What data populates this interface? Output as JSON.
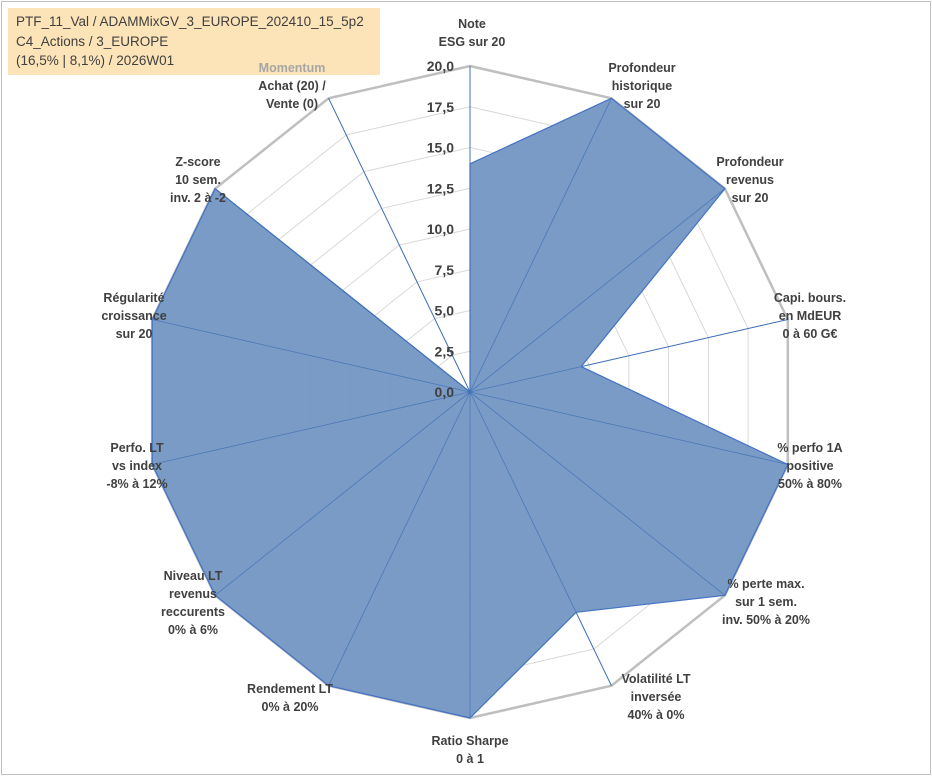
{
  "header": {
    "line1": "PTF_11_Val / ADAMMixGV_3_EUROPE_202410_15_5p2",
    "line2": "C4_Actions / 3_EUROPE",
    "line3": "(16,5% | 8,1%) / 2026W01"
  },
  "chart_data": {
    "type": "radar",
    "title": "",
    "rmin": 0,
    "rmax": 20,
    "ticks": [
      "0,0",
      "2,5",
      "5,0",
      "7,5",
      "10,0",
      "12,5",
      "15,0",
      "17,5",
      "20,0"
    ],
    "grid": true,
    "colors": {
      "fill": "#7396c3",
      "line": "#4472c4",
      "grid": "#d9d9d9",
      "outer": "#bfbfbf"
    },
    "axes": [
      {
        "lines": [
          "Note",
          "ESG sur 20"
        ],
        "value": 14
      },
      {
        "lines": [
          "Profondeur",
          "historique",
          "sur 20"
        ],
        "value": 20
      },
      {
        "lines": [
          "Profondeur",
          "revenus",
          "sur 20"
        ],
        "value": 20
      },
      {
        "lines": [
          "Capi. bours.",
          "en MdEUR",
          "0 à 60 G€"
        ],
        "value": 7
      },
      {
        "lines": [
          "% perfo 1A",
          "positive",
          "50% à 80%"
        ],
        "value": 20
      },
      {
        "lines": [
          "% perte max.",
          "sur 1 sem.",
          "inv. 50% à 20%"
        ],
        "value": 20
      },
      {
        "lines": [
          "Volatilité LT",
          "inversée",
          "40% à 0%"
        ],
        "value": 15
      },
      {
        "lines": [
          "Ratio Sharpe",
          "0 à 1"
        ],
        "value": 20
      },
      {
        "lines": [
          "Rendement LT",
          "0% à 20%"
        ],
        "value": 20
      },
      {
        "lines": [
          "Niveau LT",
          "revenus",
          "reccurents",
          "0% à 6%"
        ],
        "value": 20
      },
      {
        "lines": [
          "Perfo. LT",
          "vs index",
          "-8% à 12%"
        ],
        "value": 20
      },
      {
        "lines": [
          "Régularité",
          "croissance",
          "sur 20"
        ],
        "value": 20
      },
      {
        "lines": [
          "Z-score",
          "10 sem.",
          "inv. 2 à -2"
        ],
        "value": 20
      },
      {
        "lines": [
          "Momentum",
          "Achat (20) /",
          "Vente (0)"
        ],
        "value": 0
      }
    ]
  }
}
